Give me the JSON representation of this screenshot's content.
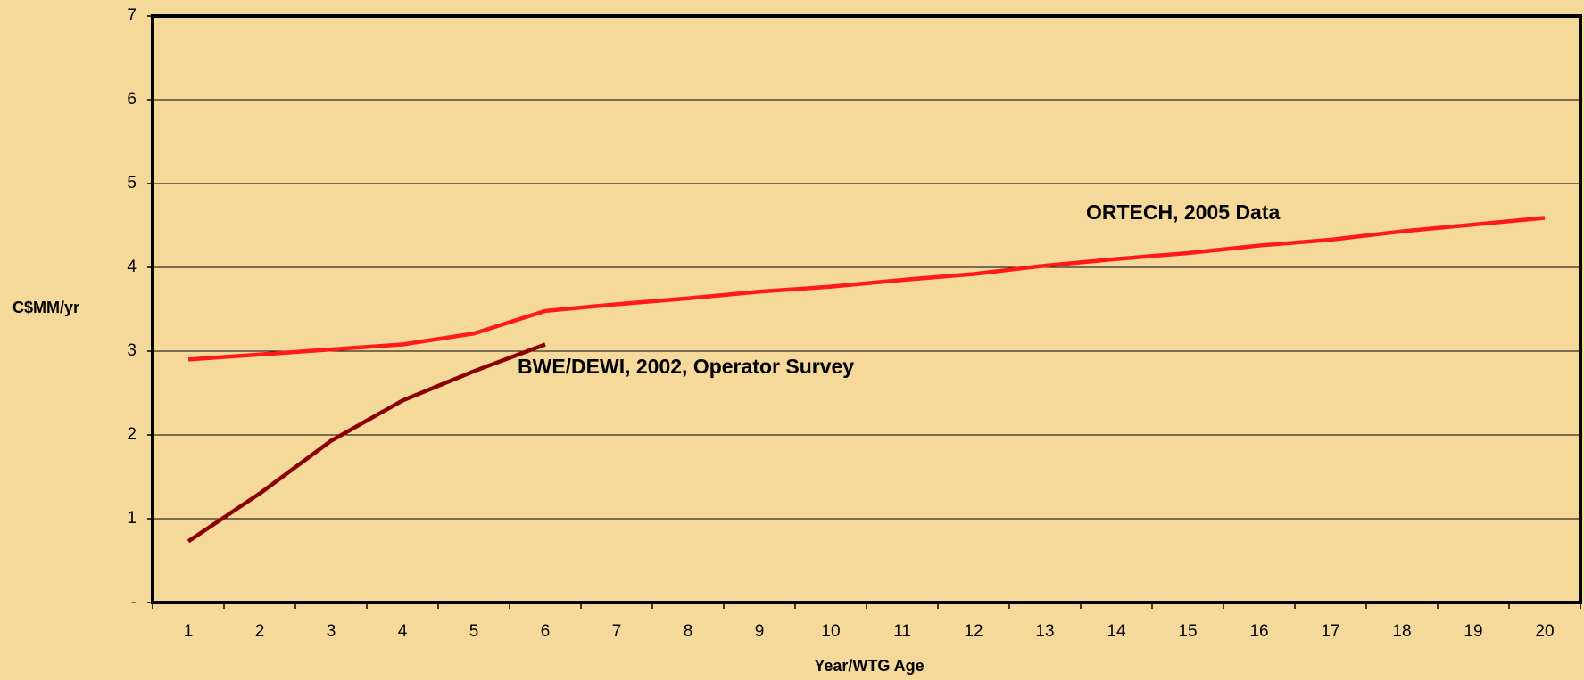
{
  "chart_data": {
    "type": "line",
    "y_label": "C$MM/yr",
    "x_label": "Year/WTG Age",
    "categories": [
      "1",
      "2",
      "3",
      "4",
      "5",
      "6",
      "7",
      "8",
      "9",
      "10",
      "11",
      "12",
      "13",
      "14",
      "15",
      "16",
      "17",
      "18",
      "19",
      "20"
    ],
    "series": [
      {
        "name": "ORTECH, 2005 Data",
        "color": "#ff1a1a",
        "values": [
          2.9,
          2.96,
          3.02,
          3.08,
          3.21,
          3.48,
          3.56,
          3.63,
          3.71,
          3.77,
          3.85,
          3.92,
          4.02,
          4.1,
          4.17,
          4.26,
          4.33,
          4.43,
          4.51,
          4.59
        ]
      },
      {
        "name": "BWE/DEWI, 2002, Operator Survey",
        "color": "#8b0000",
        "values": [
          0.73,
          1.3,
          1.93,
          2.41,
          2.76,
          3.08,
          null,
          null,
          null,
          null,
          null,
          null,
          null,
          null,
          null,
          null,
          null,
          null,
          null,
          null
        ]
      }
    ],
    "ylim": [
      0,
      7
    ],
    "yticks": [
      {
        "value": 0,
        "label": "-"
      },
      1,
      2,
      3,
      4,
      5,
      6,
      7
    ],
    "grid": true
  }
}
